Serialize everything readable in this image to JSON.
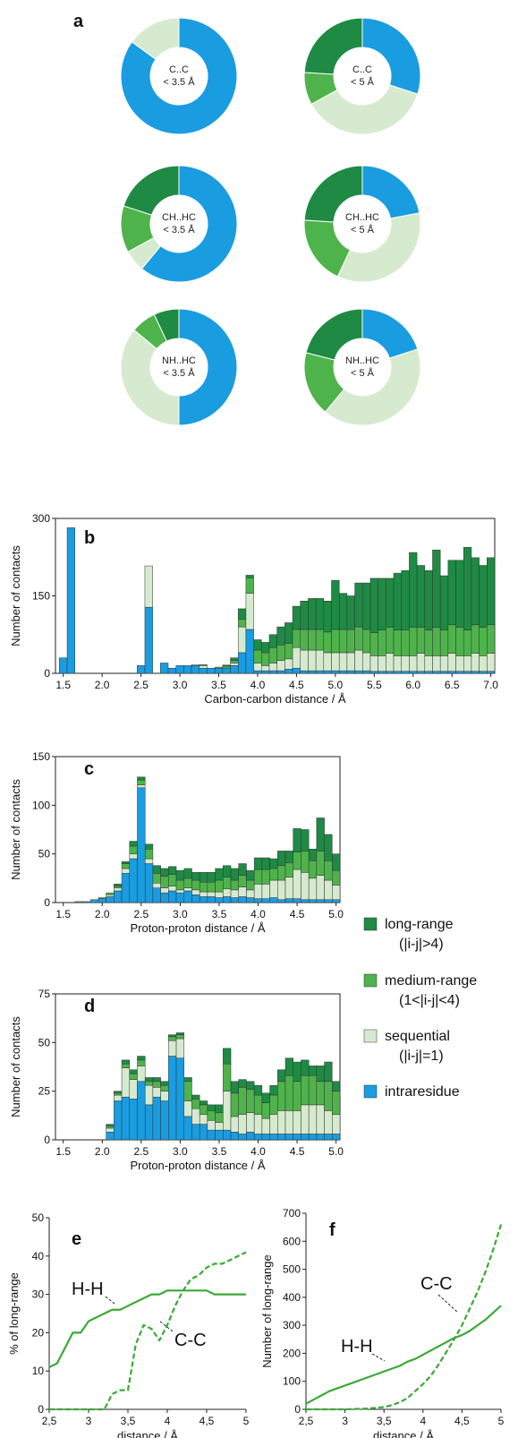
{
  "colors": {
    "long_range": "#1e8a44",
    "medium_range": "#4fb34b",
    "sequential": "#d6ead0",
    "intraresidue": "#1a9ce0",
    "line": "#3aaa35"
  },
  "legend": [
    {
      "key": "long_range",
      "label": "long-range",
      "sub": "(|i-j|>4)"
    },
    {
      "key": "medium_range",
      "label": "medium-range",
      "sub": "(1<|i-j|<4)"
    },
    {
      "key": "sequential",
      "label": "sequential",
      "sub": "(|i-j|=1)"
    },
    {
      "key": "intraresidue",
      "label": "intraresidue",
      "sub": ""
    }
  ],
  "chart_data": [
    {
      "type": "pie",
      "panel": "a",
      "donuts": [
        {
          "label": [
            "C..C",
            "< 3.5 Å"
          ],
          "slices": {
            "intraresidue": 85,
            "sequential": 15,
            "medium_range": 0,
            "long_range": 0
          }
        },
        {
          "label": [
            "C..C",
            "< 5 Å"
          ],
          "slices": {
            "intraresidue": 30,
            "sequential": 37,
            "medium_range": 9,
            "long_range": 24
          }
        },
        {
          "label": [
            "CH..HC",
            "< 3.5 Å"
          ],
          "slices": {
            "intraresidue": 61,
            "sequential": 6,
            "medium_range": 13,
            "long_range": 20
          }
        },
        {
          "label": [
            "CH..HC",
            "< 5 Å"
          ],
          "slices": {
            "intraresidue": 22,
            "sequential": 35,
            "medium_range": 19,
            "long_range": 24
          }
        },
        {
          "label": [
            "NH..HC",
            "< 3.5 Å"
          ],
          "slices": {
            "intraresidue": 50,
            "sequential": 36,
            "medium_range": 7,
            "long_range": 7
          }
        },
        {
          "label": [
            "NH..HC",
            "< 5 Å"
          ],
          "slices": {
            "intraresidue": 20,
            "sequential": 41,
            "medium_range": 18,
            "long_range": 21
          }
        }
      ]
    },
    {
      "type": "bar",
      "panel": "b",
      "xlabel": "Carbon-carbon distance  /  Å",
      "ylabel": "Number of contacts",
      "xlim": [
        1.4,
        7.05
      ],
      "ylim": [
        0,
        300
      ],
      "xticks": [
        "1.5",
        "2.0",
        "2.5",
        "3.0",
        "3.5",
        "4.0",
        "4.5",
        "5.0",
        "5.5",
        "6.0",
        "6.5",
        "7.0"
      ],
      "yticks": [
        "0",
        "150",
        "300"
      ],
      "bin_width": 0.1,
      "x": [
        1.5,
        1.6,
        2.5,
        2.6,
        2.8,
        2.9,
        3.0,
        3.1,
        3.2,
        3.3,
        3.4,
        3.5,
        3.6,
        3.7,
        3.8,
        3.9,
        4.0,
        4.1,
        4.2,
        4.3,
        4.4,
        4.5,
        4.6,
        4.7,
        4.8,
        4.9,
        5.0,
        5.1,
        5.2,
        5.3,
        5.4,
        5.5,
        5.6,
        5.7,
        5.8,
        5.9,
        6.0,
        6.1,
        6.2,
        6.3,
        6.4,
        6.5,
        6.6,
        6.7,
        6.8,
        6.9,
        7.0
      ],
      "series": [
        {
          "name": "intraresidue",
          "values": [
            30,
            282,
            15,
            128,
            20,
            10,
            15,
            15,
            15,
            10,
            10,
            10,
            10,
            15,
            40,
            85,
            5,
            5,
            5,
            5,
            8,
            10,
            5,
            5,
            5,
            5,
            5,
            5,
            5,
            5,
            5,
            4,
            4,
            4,
            4,
            4,
            4,
            4,
            4,
            4,
            4,
            4,
            4,
            4,
            4,
            4,
            4
          ]
        },
        {
          "name": "sequential",
          "values": [
            0,
            0,
            0,
            80,
            0,
            0,
            0,
            0,
            2,
            5,
            0,
            0,
            0,
            5,
            50,
            70,
            15,
            10,
            15,
            20,
            20,
            40,
            40,
            40,
            40,
            35,
            35,
            35,
            35,
            40,
            35,
            30,
            30,
            35,
            30,
            30,
            30,
            35,
            30,
            30,
            30,
            35,
            30,
            30,
            35,
            30,
            35
          ]
        },
        {
          "name": "medium_range",
          "values": [
            0,
            0,
            0,
            0,
            0,
            0,
            0,
            0,
            0,
            2,
            0,
            2,
            4,
            5,
            15,
            30,
            25,
            25,
            30,
            30,
            30,
            35,
            40,
            40,
            40,
            40,
            45,
            45,
            45,
            45,
            45,
            45,
            50,
            50,
            50,
            50,
            55,
            50,
            50,
            55,
            50,
            55,
            55,
            50,
            55,
            55,
            55
          ]
        },
        {
          "name": "long_range",
          "values": [
            0,
            0,
            0,
            0,
            0,
            0,
            0,
            0,
            0,
            0,
            0,
            0,
            2,
            5,
            20,
            5,
            20,
            20,
            25,
            35,
            40,
            45,
            55,
            60,
            60,
            60,
            95,
            70,
            65,
            85,
            90,
            105,
            100,
            95,
            110,
            115,
            145,
            120,
            115,
            150,
            105,
            125,
            130,
            160,
            130,
            120,
            130
          ]
        }
      ]
    },
    {
      "type": "bar",
      "panel": "c",
      "xlabel": "Proton-proton distance  /  Å",
      "ylabel": "Number of contacts",
      "xlim": [
        1.4,
        5.05
      ],
      "ylim": [
        0,
        150
      ],
      "xticks": [
        "1.5",
        "2.0",
        "2.5",
        "3.0",
        "3.5",
        "4.0",
        "4.5",
        "5.0"
      ],
      "yticks": [
        "0",
        "50",
        "100",
        "150"
      ],
      "bin_width": 0.1,
      "x": [
        1.7,
        1.8,
        1.9,
        2.0,
        2.1,
        2.2,
        2.3,
        2.4,
        2.5,
        2.6,
        2.7,
        2.8,
        2.9,
        3.0,
        3.1,
        3.2,
        3.3,
        3.4,
        3.5,
        3.6,
        3.7,
        3.8,
        3.9,
        4.0,
        4.1,
        4.2,
        4.3,
        4.4,
        4.5,
        4.6,
        4.7,
        4.8,
        4.9,
        5.0
      ],
      "series": [
        {
          "name": "intraresidue",
          "values": [
            1,
            1,
            3,
            4,
            6,
            12,
            30,
            45,
            118,
            40,
            15,
            10,
            12,
            10,
            12,
            8,
            6,
            6,
            5,
            6,
            5,
            6,
            5,
            4,
            4,
            5,
            3,
            4,
            4,
            3,
            3,
            3,
            3,
            3
          ]
        },
        {
          "name": "sequential",
          "values": [
            0,
            0,
            0,
            0,
            2,
            3,
            5,
            5,
            3,
            5,
            5,
            5,
            5,
            3,
            3,
            5,
            5,
            5,
            6,
            8,
            8,
            10,
            8,
            15,
            15,
            18,
            20,
            22,
            30,
            28,
            22,
            25,
            20,
            15
          ]
        },
        {
          "name": "medium_range",
          "values": [
            0,
            0,
            0,
            1,
            2,
            2,
            5,
            8,
            5,
            10,
            10,
            12,
            12,
            10,
            10,
            10,
            10,
            10,
            12,
            12,
            10,
            12,
            10,
            15,
            15,
            12,
            15,
            15,
            18,
            22,
            18,
            25,
            20,
            15
          ]
        },
        {
          "name": "long_range",
          "values": [
            0,
            0,
            0,
            0,
            0,
            2,
            2,
            5,
            3,
            5,
            8,
            8,
            8,
            10,
            10,
            8,
            10,
            10,
            12,
            12,
            12,
            12,
            10,
            12,
            12,
            10,
            15,
            12,
            24,
            22,
            12,
            34,
            27,
            17
          ]
        }
      ]
    },
    {
      "type": "bar",
      "panel": "d",
      "xlabel": "Proton-proton distance  /  Å",
      "ylabel": "Number of contacts",
      "xlim": [
        1.4,
        5.05
      ],
      "ylim": [
        0,
        75
      ],
      "xticks": [
        "1.5",
        "2.0",
        "2.5",
        "3.0",
        "3.5",
        "4.0",
        "4.5",
        "5.0"
      ],
      "yticks": [
        "0",
        "25",
        "50",
        "75"
      ],
      "bin_width": 0.1,
      "x": [
        2.1,
        2.2,
        2.3,
        2.4,
        2.5,
        2.6,
        2.7,
        2.8,
        2.9,
        3.0,
        3.1,
        3.2,
        3.3,
        3.4,
        3.5,
        3.6,
        3.7,
        3.8,
        3.9,
        4.0,
        4.1,
        4.2,
        4.3,
        4.4,
        4.5,
        4.6,
        4.7,
        4.8,
        4.9,
        5.0
      ],
      "series": [
        {
          "name": "intraresidue",
          "values": [
            4,
            20,
            22,
            21,
            30,
            18,
            22,
            20,
            43,
            42,
            12,
            8,
            8,
            5,
            5,
            5,
            4,
            3,
            4,
            3,
            3,
            3,
            3,
            3,
            3,
            3,
            3,
            3,
            3,
            3
          ]
        },
        {
          "name": "sequential",
          "values": [
            2,
            3,
            15,
            10,
            8,
            10,
            5,
            5,
            8,
            10,
            8,
            8,
            5,
            5,
            4,
            20,
            8,
            10,
            10,
            10,
            8,
            10,
            12,
            12,
            12,
            15,
            15,
            15,
            12,
            10
          ]
        },
        {
          "name": "medium_range",
          "values": [
            1,
            1,
            2,
            3,
            3,
            2,
            3,
            3,
            2,
            2,
            10,
            5,
            5,
            5,
            5,
            14,
            12,
            14,
            12,
            10,
            8,
            10,
            15,
            18,
            15,
            15,
            15,
            12,
            15,
            12
          ]
        },
        {
          "name": "long_range",
          "values": [
            1,
            1,
            2,
            2,
            2,
            2,
            2,
            2,
            1,
            1,
            2,
            2,
            2,
            3,
            4,
            8,
            6,
            4,
            4,
            5,
            5,
            5,
            6,
            9,
            10,
            8,
            5,
            8,
            10,
            5
          ]
        }
      ]
    },
    {
      "type": "line",
      "panel": "e",
      "xlabel": "distance / Å",
      "ylabel": "% of long-range",
      "xlim": [
        2.5,
        5
      ],
      "ylim": [
        0,
        50
      ],
      "xticks": [
        "2,5",
        "3",
        "3,5",
        "4",
        "4,5",
        "5"
      ],
      "yticks": [
        "0",
        "10",
        "20",
        "30",
        "40",
        "50"
      ],
      "series": [
        {
          "name": "H-H",
          "style": "solid",
          "x": [
            2.5,
            2.6,
            2.7,
            2.8,
            2.9,
            3.0,
            3.1,
            3.2,
            3.3,
            3.4,
            3.5,
            3.6,
            3.7,
            3.8,
            3.9,
            4.0,
            4.1,
            4.2,
            4.3,
            4.4,
            4.5,
            4.6,
            4.7,
            4.8,
            4.9,
            5.0
          ],
          "y": [
            11,
            12,
            16,
            20,
            20,
            23,
            24,
            25,
            26,
            26,
            27,
            28,
            29,
            30,
            30,
            31,
            31,
            31,
            31,
            31,
            31,
            30,
            30,
            30,
            30,
            30
          ]
        },
        {
          "name": "C-C",
          "style": "dashed",
          "x": [
            2.5,
            3.2,
            3.3,
            3.4,
            3.5,
            3.6,
            3.7,
            3.8,
            3.9,
            4.0,
            4.1,
            4.2,
            4.3,
            4.4,
            4.5,
            4.6,
            4.7,
            4.8,
            4.9,
            5.0
          ],
          "y": [
            0,
            0,
            4,
            5,
            5,
            17,
            22,
            21,
            18,
            22,
            27,
            31,
            34,
            35,
            37,
            38,
            38,
            39,
            40,
            41
          ]
        }
      ]
    },
    {
      "type": "line",
      "panel": "f",
      "xlabel": "distance / Å",
      "ylabel": "Number of long-range",
      "xlim": [
        2.5,
        5
      ],
      "ylim": [
        0,
        700
      ],
      "xticks": [
        "2,5",
        "3",
        "3,5",
        "4",
        "4,5",
        "5"
      ],
      "yticks": [
        "0",
        "100",
        "200",
        "300",
        "400",
        "500",
        "600",
        "700"
      ],
      "series": [
        {
          "name": "H-H",
          "style": "solid",
          "x": [
            2.5,
            2.6,
            2.7,
            2.8,
            2.9,
            3.0,
            3.1,
            3.2,
            3.3,
            3.4,
            3.5,
            3.6,
            3.7,
            3.8,
            3.9,
            4.0,
            4.1,
            4.2,
            4.3,
            4.4,
            4.5,
            4.6,
            4.7,
            4.8,
            4.9,
            5.0
          ],
          "y": [
            20,
            35,
            50,
            65,
            75,
            85,
            95,
            105,
            115,
            125,
            135,
            145,
            155,
            170,
            180,
            195,
            210,
            225,
            240,
            255,
            265,
            280,
            300,
            320,
            345,
            370
          ]
        },
        {
          "name": "C-C",
          "style": "dashed",
          "x": [
            2.5,
            3.0,
            3.3,
            3.5,
            3.6,
            3.7,
            3.8,
            3.9,
            4.0,
            4.1,
            4.2,
            4.3,
            4.4,
            4.5,
            4.6,
            4.7,
            4.8,
            4.9,
            5.0
          ],
          "y": [
            0,
            0,
            3,
            8,
            15,
            25,
            40,
            65,
            90,
            120,
            160,
            205,
            250,
            300,
            360,
            420,
            490,
            570,
            660
          ]
        }
      ]
    }
  ],
  "panel_labels": {
    "a": "a",
    "b": "b",
    "c": "c",
    "d": "d",
    "e": "e",
    "f": "f"
  }
}
